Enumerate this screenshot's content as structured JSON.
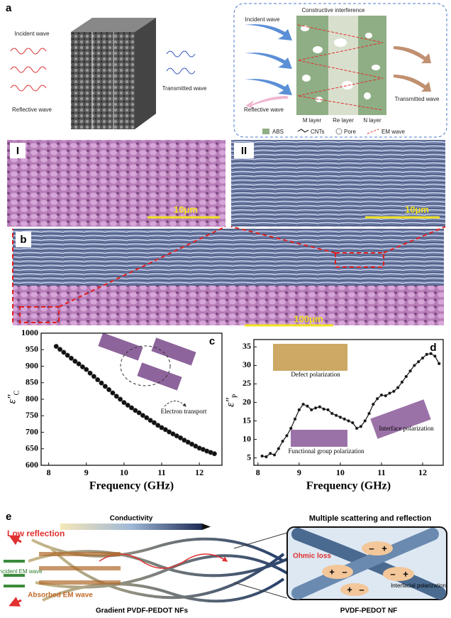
{
  "panel_a": {
    "label": "a",
    "incident": "Incident wave",
    "reflective": "Reflective wave",
    "transmitted": "Transmitted wave",
    "box_title": "Constructive interference",
    "box_incident": "Incident wave",
    "box_reflective": "Reflective wave",
    "box_transmitted": "Transmitted wave",
    "layers": [
      "M layer",
      "Re layer",
      "N layer"
    ],
    "legend": [
      "ABS",
      "CNTs",
      "Pore",
      "EM wave"
    ]
  },
  "images": {
    "left_label": "I",
    "right_label": "II",
    "left_scale": "10μm",
    "right_scale": "10μm"
  },
  "panel_b": {
    "label": "b",
    "scale": "100μm"
  },
  "chart_data": [
    {
      "type": "line",
      "label": "c",
      "xlabel": "Frequency (GHz)",
      "ylabel": "ε″",
      "ylabel_sub": "C",
      "annotation": "Electron transport",
      "color": "#111111",
      "markers": true,
      "x": [
        8.2,
        8.3,
        8.4,
        8.5,
        8.6,
        8.7,
        8.8,
        8.9,
        9.0,
        9.1,
        9.2,
        9.3,
        9.4,
        9.5,
        9.6,
        9.7,
        9.8,
        9.9,
        10.0,
        10.1,
        10.2,
        10.3,
        10.4,
        10.5,
        10.6,
        10.7,
        10.8,
        10.9,
        11.0,
        11.1,
        11.2,
        11.3,
        11.4,
        11.5,
        11.6,
        11.7,
        11.8,
        11.9,
        12.0,
        12.1,
        12.2,
        12.3,
        12.4
      ],
      "values": [
        960,
        951,
        942,
        933,
        924,
        915,
        907,
        898,
        890,
        879,
        869,
        859,
        849,
        839,
        829,
        819,
        809,
        800,
        790,
        782,
        774,
        766,
        759,
        751,
        744,
        736,
        729,
        721,
        714,
        708,
        701,
        695,
        689,
        683,
        676,
        670,
        664,
        658,
        652,
        648,
        643,
        639,
        635
      ],
      "xlim": [
        7.8,
        12.6
      ],
      "ylim": [
        600,
        1000
      ],
      "xticks": [
        8,
        9,
        10,
        11,
        12
      ],
      "yticks": [
        600,
        650,
        700,
        750,
        800,
        850,
        900,
        950,
        1000
      ]
    },
    {
      "type": "line",
      "label": "d",
      "xlabel": "Frequency (GHz)",
      "ylabel": "ε″",
      "ylabel_sub": "P",
      "annotations": [
        "Defect polarization",
        "Functional group polarization",
        "Interface polarization"
      ],
      "color": "#111111",
      "markers": true,
      "x": [
        8.1,
        8.2,
        8.3,
        8.4,
        8.5,
        8.6,
        8.7,
        8.8,
        8.9,
        9.0,
        9.1,
        9.2,
        9.3,
        9.4,
        9.5,
        9.6,
        9.7,
        9.8,
        9.9,
        10.0,
        10.1,
        10.2,
        10.3,
        10.4,
        10.5,
        10.6,
        10.7,
        10.8,
        10.9,
        11.0,
        11.1,
        11.2,
        11.3,
        11.4,
        11.5,
        11.6,
        11.7,
        11.8,
        11.9,
        12.0,
        12.1,
        12.2,
        12.3,
        12.4
      ],
      "values": [
        5.5,
        5.3,
        6.2,
        5.8,
        7.5,
        9.5,
        11,
        13,
        15.5,
        18,
        19.5,
        19,
        18,
        18.5,
        18.8,
        18.2,
        18,
        17,
        16.5,
        16,
        15.5,
        15,
        14.5,
        13,
        13.5,
        15,
        17,
        19.5,
        21,
        22,
        21.8,
        22.5,
        23,
        24,
        25.5,
        27,
        28.5,
        30,
        31,
        32,
        33,
        33.2,
        32.5,
        30.5
      ],
      "xlim": [
        7.9,
        12.5
      ],
      "ylim": [
        3,
        37
      ],
      "xticks": [
        8,
        9,
        10,
        11,
        12
      ],
      "yticks": [
        5,
        10,
        15,
        20,
        25,
        30,
        35
      ]
    }
  ],
  "panel_e": {
    "label": "e",
    "conductivity": "Conductivity",
    "low_reflection": "Low reflection",
    "incident": "Incident EM wave",
    "absorbed": "Absorbed EM wave",
    "left_caption": "Gradient PVDF-PEDOT NFs",
    "right_title": "Multiple scattering and reflection",
    "ohmic": "Ohmic loss",
    "interfacial": "Interfacial polarization",
    "right_caption": "PVDF-PEDOT NF"
  }
}
